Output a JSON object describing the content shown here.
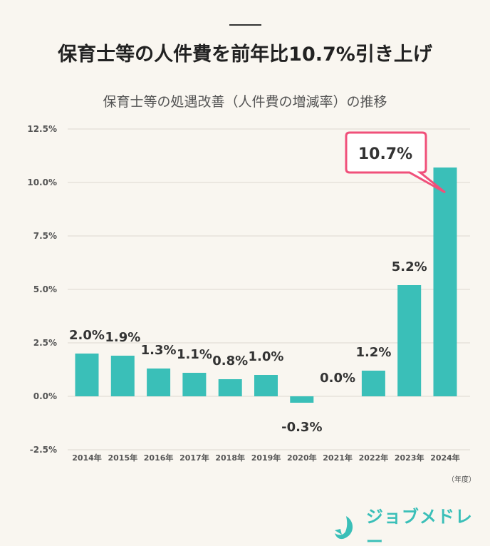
{
  "title": "保育士等の人件費を前年比10.7%引き上げ",
  "chart_data": {
    "type": "bar",
    "title": "保育士等の処遇改善（人件費の増減率）の推移",
    "categories": [
      "2014年",
      "2015年",
      "2016年",
      "2017年",
      "2018年",
      "2019年",
      "2020年",
      "2021年",
      "2022年",
      "2023年",
      "2024年"
    ],
    "values": [
      2.0,
      1.9,
      1.3,
      1.1,
      0.8,
      1.0,
      -0.3,
      0.0,
      1.2,
      5.2,
      10.7
    ],
    "data_labels": [
      "2.0%",
      "1.9%",
      "1.3%",
      "1.1%",
      "0.8%",
      "1.0%",
      "-0.3%",
      "0.0%",
      "1.2%",
      "5.2%",
      "10.7%"
    ],
    "ylim": [
      -2.5,
      12.5
    ],
    "yticks": [
      "12.5%",
      "10.0%",
      "7.5%",
      "5.0%",
      "2.5%",
      "0.0%",
      "-2.5%"
    ],
    "ytick_values": [
      12.5,
      10,
      7.5,
      5,
      2.5,
      0,
      -2.5
    ],
    "xlabel": "（年度）",
    "grid": true,
    "bar_color": "#3abfb8",
    "highlight_color": "#f0507a"
  },
  "logo": {
    "text": "ジョブメドレー"
  }
}
